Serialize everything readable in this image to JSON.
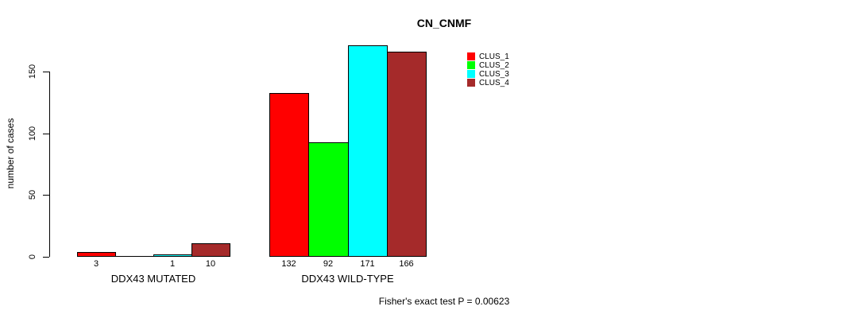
{
  "chart_data": {
    "type": "bar",
    "title": "CN_CNMF",
    "ylabel": "number of cases",
    "xlabel": "",
    "yticks": [
      0,
      50,
      100,
      150
    ],
    "ylim": [
      0,
      175
    ],
    "grid": false,
    "legend_position": "top-right",
    "bar_border_color": "#000000",
    "background_color": "#ffffff",
    "series": [
      {
        "name": "CLUS_1",
        "color": "#FF0000"
      },
      {
        "name": "CLUS_2",
        "color": "#00FF00"
      },
      {
        "name": "CLUS_3",
        "color": "#00FFFF"
      },
      {
        "name": "CLUS_4",
        "color": "#A52A2A"
      }
    ],
    "groups": [
      {
        "label": "DDX43 MUTATED",
        "values": [
          3,
          0,
          1,
          10
        ],
        "value_labels": [
          "3",
          "",
          "1",
          "10"
        ]
      },
      {
        "label": "DDX43 WILD-TYPE",
        "values": [
          132,
          92,
          171,
          166
        ],
        "value_labels": [
          "132",
          "92",
          "171",
          "166"
        ]
      }
    ],
    "annotation": "Fisher's exact test P = 0.00623"
  }
}
